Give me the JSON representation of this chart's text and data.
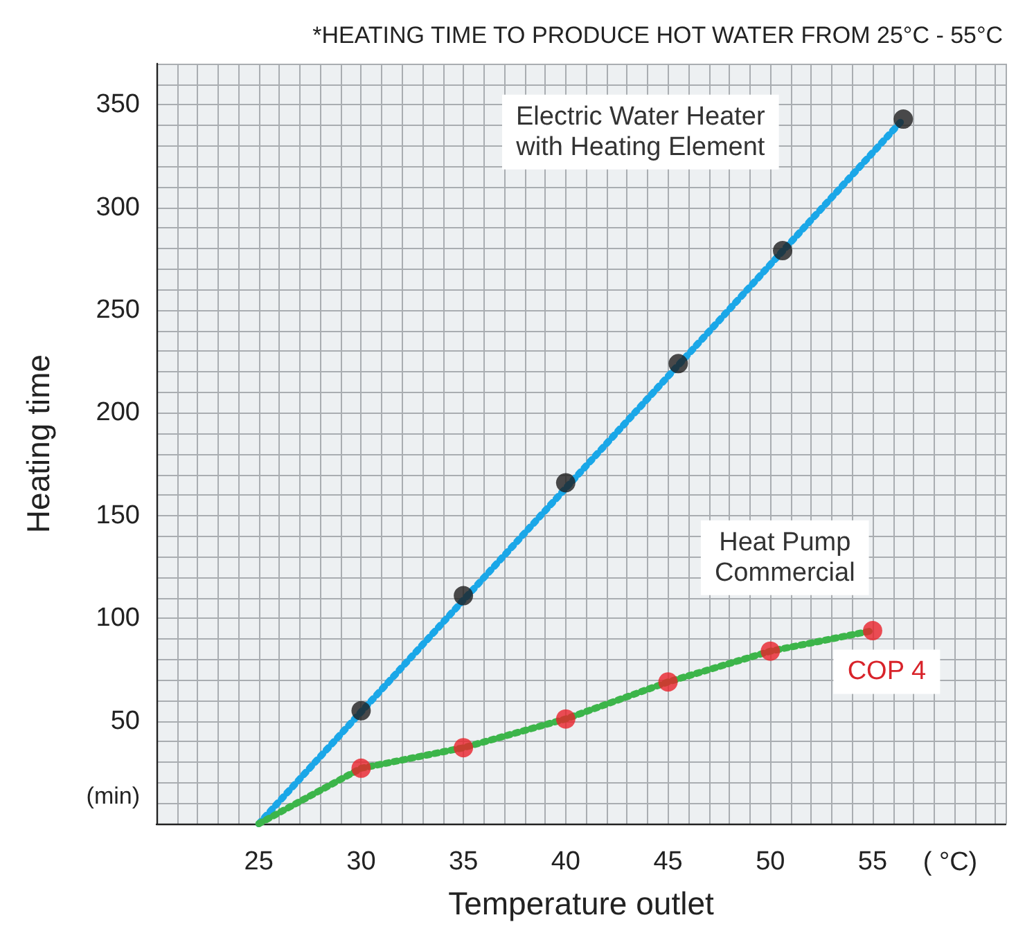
{
  "chart_data": {
    "type": "line",
    "title": "*HEATING TIME TO PRODUCE HOT WATER FROM 25°C - 55°C",
    "xlabel": "Temperature outlet",
    "ylabel": "Heating time",
    "xlim": [
      20,
      61.5
    ],
    "ylim": [
      0,
      370
    ],
    "xticks": [
      25,
      30,
      35,
      40,
      45,
      50,
      55
    ],
    "yticks": [
      50,
      100,
      150,
      200,
      250,
      300,
      350
    ],
    "grid": true,
    "series": [
      {
        "color": "#1aa7e8",
        "line_style": "dotted",
        "marker": "none",
        "x": [
          25,
          56.5
        ],
        "values": [
          0,
          343
        ]
      },
      {
        "type": "scatter",
        "color": "#1e1e1e",
        "marker": "circle",
        "x": [
          30,
          35,
          40,
          45.5,
          50.6,
          56.5
        ],
        "values": [
          55,
          111,
          166,
          224,
          279,
          343
        ]
      },
      {
        "color": "#3cb54a",
        "line_style": "dotted",
        "marker": "none",
        "x": [
          25,
          30,
          35,
          40,
          45,
          50,
          55
        ],
        "values": [
          0,
          27,
          37,
          51,
          69,
          84,
          94
        ]
      },
      {
        "type": "scatter",
        "color": "#e8222a",
        "marker": "circle",
        "x": [
          30,
          35,
          40,
          45,
          50,
          55
        ],
        "values": [
          27,
          37,
          51,
          69,
          84,
          94
        ]
      }
    ],
    "annotations": [
      "(min)",
      "( °C)",
      "Electric Water Heater\nwith Heating Element",
      "Heat Pump\nCommercial",
      "COP 4"
    ]
  }
}
